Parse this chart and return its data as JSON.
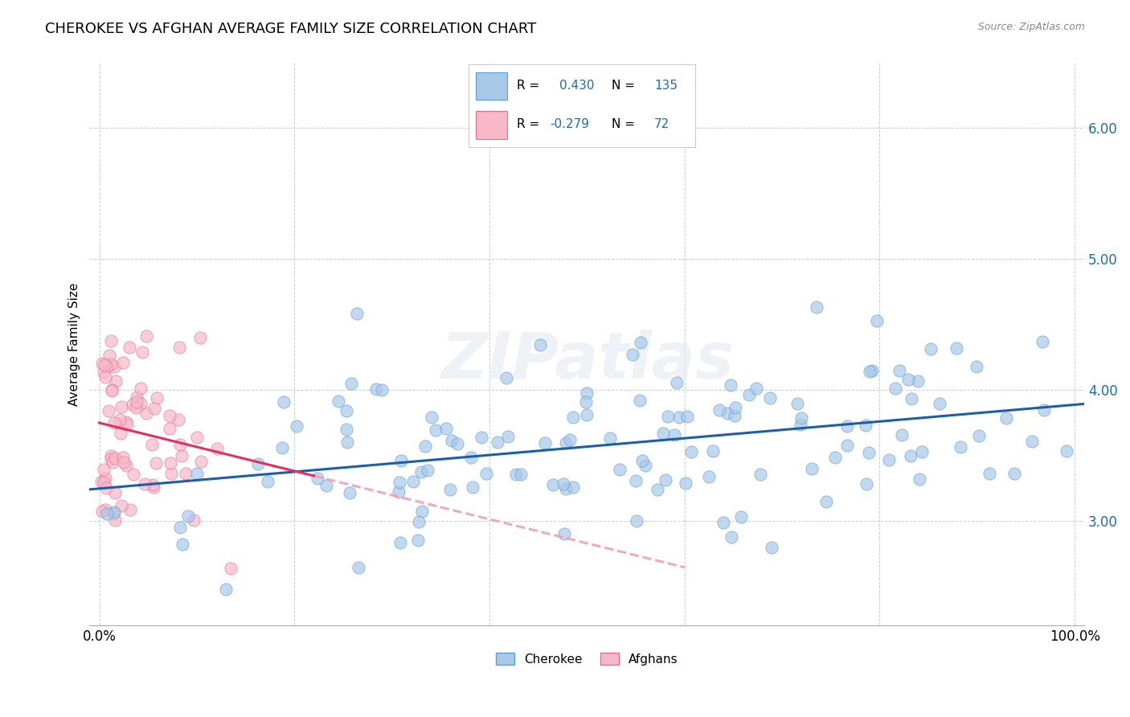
{
  "title": "CHEROKEE VS AFGHAN AVERAGE FAMILY SIZE CORRELATION CHART",
  "source": "Source: ZipAtlas.com",
  "ylabel": "Average Family Size",
  "yticks": [
    3.0,
    4.0,
    5.0,
    6.0
  ],
  "ylim": [
    2.2,
    6.5
  ],
  "xlim": [
    -0.01,
    1.01
  ],
  "watermark": "ZIPatlas",
  "cherokee_color": "#a8c8e8",
  "cherokee_edge_color": "#5a9fd4",
  "afghan_color": "#f7b8c8",
  "afghan_edge_color": "#e07090",
  "cherokee_line_color": "#1a5fa8",
  "afghan_line_solid_color": "#e03060",
  "afghan_line_dash_color": "#f0a0b8",
  "cherokee_R": 0.43,
  "cherokee_N": 135,
  "afghan_R": -0.279,
  "afghan_N": 72,
  "background_color": "#ffffff",
  "grid_color": "#cccccc",
  "title_fontsize": 13,
  "axis_label_fontsize": 11,
  "tick_fontsize": 12,
  "ytick_color": "#1a6bbf",
  "cherokee_seed": 42,
  "afghan_seed": 99
}
